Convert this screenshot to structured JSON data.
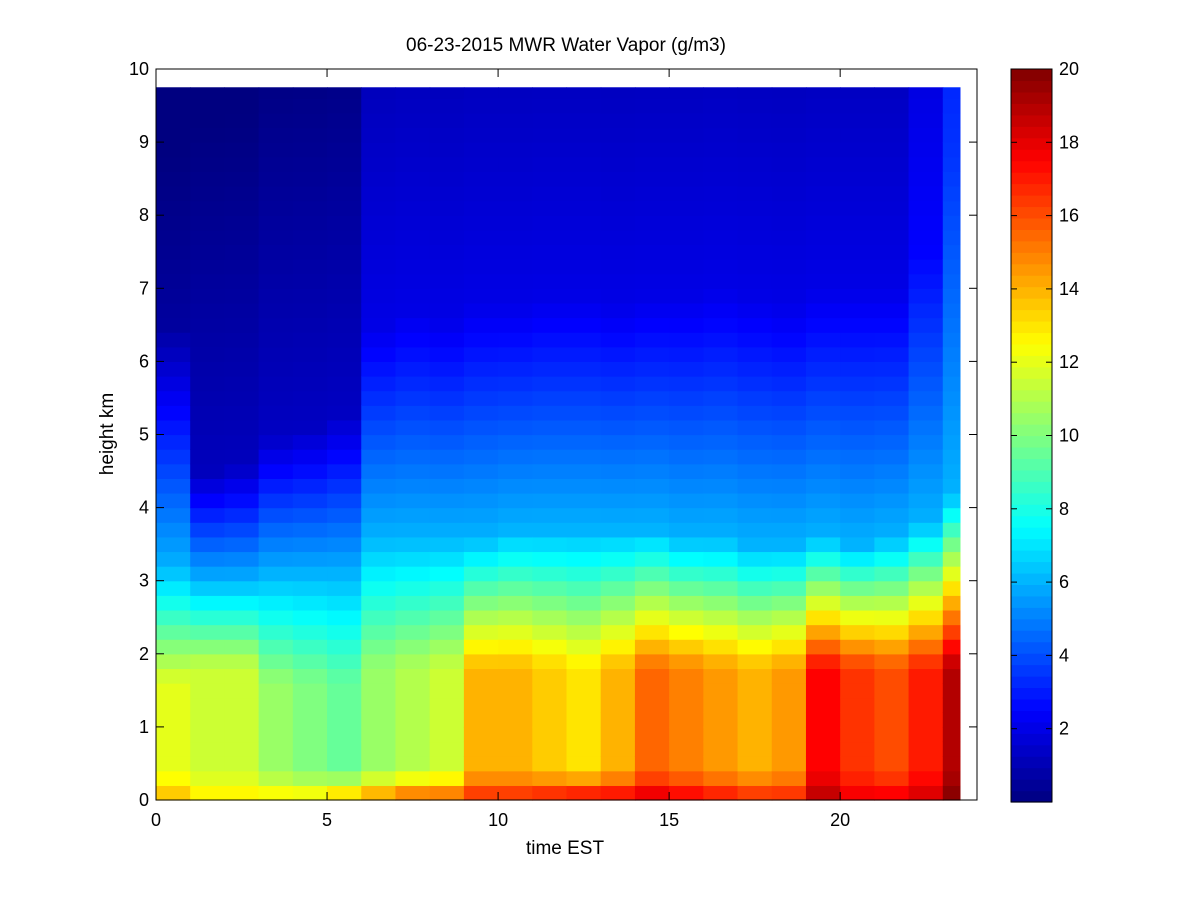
{
  "chart_data": {
    "type": "heatmap",
    "title": "06-23-2015 MWR Water Vapor (g/m3)",
    "xlabel": "time EST",
    "ylabel": "height km",
    "xlim": [
      0,
      24
    ],
    "ylim": [
      0,
      10
    ],
    "x_ticks": [
      0,
      5,
      10,
      15,
      20
    ],
    "x_tick_labels": [
      "0",
      "5",
      "10",
      "15",
      "20"
    ],
    "y_ticks": [
      0,
      1,
      2,
      3,
      4,
      5,
      6,
      7,
      8,
      9,
      10
    ],
    "y_tick_labels": [
      "0",
      "1",
      "2",
      "3",
      "4",
      "5",
      "6",
      "7",
      "8",
      "9",
      "10"
    ],
    "colorbar": {
      "colormap": "jet",
      "range": [
        0,
        20
      ],
      "ticks": [
        2,
        4,
        6,
        8,
        10,
        12,
        14,
        16,
        18,
        20
      ],
      "tick_labels": [
        "2",
        "4",
        "6",
        "8",
        "10",
        "12",
        "14",
        "16",
        "18",
        "20"
      ]
    },
    "time_bins_hours": [
      0,
      1,
      2,
      3,
      4,
      5,
      6,
      7,
      8,
      9,
      10,
      11,
      12,
      13,
      14,
      15,
      16,
      17,
      18,
      19,
      20,
      21,
      22,
      23
    ],
    "height_max_km": 9.75,
    "profiles": [
      {
        "time": 0,
        "surface": 14,
        "plateau": 12.0,
        "plateau_top": 1.6,
        "transition_top": 3.2,
        "upper_top": 6.5,
        "upper": 0.6
      },
      {
        "time": 1,
        "surface": 13,
        "plateau": 11.5,
        "plateau_top": 1.8,
        "transition_top": 3.0,
        "upper_top": 4.5,
        "upper": 1.2
      },
      {
        "time": 2,
        "surface": 13,
        "plateau": 11.5,
        "plateau_top": 1.8,
        "transition_top": 3.0,
        "upper_top": 4.6,
        "upper": 1.2
      },
      {
        "time": 3,
        "surface": 13,
        "plateau": 10.5,
        "plateau_top": 1.6,
        "transition_top": 3.1,
        "upper_top": 5.0,
        "upper": 1.3
      },
      {
        "time": 4,
        "surface": 13,
        "plateau": 10.0,
        "plateau_top": 1.6,
        "transition_top": 3.1,
        "upper_top": 5.1,
        "upper": 1.3
      },
      {
        "time": 5,
        "surface": 14,
        "plateau": 9.5,
        "plateau_top": 1.6,
        "transition_top": 3.1,
        "upper_top": 5.3,
        "upper": 1.3
      },
      {
        "time": 6,
        "surface": 15,
        "plateau": 10.5,
        "plateau_top": 1.8,
        "transition_top": 3.6,
        "upper_top": 6.5,
        "upper": 2.0
      },
      {
        "time": 7,
        "surface": 16,
        "plateau": 11.0,
        "plateau_top": 1.8,
        "transition_top": 3.6,
        "upper_top": 6.7,
        "upper": 2.0
      },
      {
        "time": 8,
        "surface": 16,
        "plateau": 11.5,
        "plateau_top": 1.8,
        "transition_top": 3.6,
        "upper_top": 6.6,
        "upper": 2.0
      },
      {
        "time": 9,
        "surface": 17,
        "plateau": 14.0,
        "plateau_top": 1.8,
        "transition_top": 3.6,
        "upper_top": 6.8,
        "upper": 2.0
      },
      {
        "time": 10,
        "surface": 17,
        "plateau": 14.0,
        "plateau_top": 1.8,
        "transition_top": 3.7,
        "upper_top": 6.8,
        "upper": 2.0
      },
      {
        "time": 11,
        "surface": 17.5,
        "plateau": 13.5,
        "plateau_top": 1.8,
        "transition_top": 3.7,
        "upper_top": 6.9,
        "upper": 2.0
      },
      {
        "time": 12,
        "surface": 18,
        "plateau": 13.0,
        "plateau_top": 1.8,
        "transition_top": 3.7,
        "upper_top": 6.9,
        "upper": 2.0
      },
      {
        "time": 13,
        "surface": 18,
        "plateau": 14.0,
        "plateau_top": 1.8,
        "transition_top": 3.7,
        "upper_top": 6.8,
        "upper": 2.0
      },
      {
        "time": 14,
        "surface": 18.5,
        "plateau": 15.5,
        "plateau_top": 1.8,
        "transition_top": 3.7,
        "upper_top": 6.9,
        "upper": 2.0
      },
      {
        "time": 15,
        "surface": 18,
        "plateau": 15.0,
        "plateau_top": 1.8,
        "transition_top": 3.6,
        "upper_top": 6.9,
        "upper": 2.0
      },
      {
        "time": 16,
        "surface": 17.5,
        "plateau": 14.5,
        "plateau_top": 1.8,
        "transition_top": 3.6,
        "upper_top": 7.0,
        "upper": 2.0
      },
      {
        "time": 17,
        "surface": 17,
        "plateau": 14.0,
        "plateau_top": 1.8,
        "transition_top": 3.5,
        "upper_top": 6.9,
        "upper": 2.0
      },
      {
        "time": 18,
        "surface": 17,
        "plateau": 14.5,
        "plateau_top": 1.8,
        "transition_top": 3.5,
        "upper_top": 6.8,
        "upper": 2.0
      },
      {
        "time": 19,
        "surface": 19,
        "plateau": 17.5,
        "plateau_top": 1.8,
        "transition_top": 3.6,
        "upper_top": 7.0,
        "upper": 2.0
      },
      {
        "time": 20,
        "surface": 18,
        "plateau": 16.5,
        "plateau_top": 1.8,
        "transition_top": 3.5,
        "upper_top": 7.0,
        "upper": 2.0
      },
      {
        "time": 21,
        "surface": 18,
        "plateau": 16.0,
        "plateau_top": 1.8,
        "transition_top": 3.6,
        "upper_top": 7.0,
        "upper": 2.0
      },
      {
        "time": 22,
        "surface": 18.5,
        "plateau": 17.0,
        "plateau_top": 1.8,
        "transition_top": 3.8,
        "upper_top": 7.5,
        "upper": 2.5
      },
      {
        "time": 23,
        "surface": 20,
        "plateau": 19.0,
        "plateau_top": 1.8,
        "transition_top": 4.2,
        "upper_top": 8.8,
        "upper": 3.5
      }
    ]
  }
}
